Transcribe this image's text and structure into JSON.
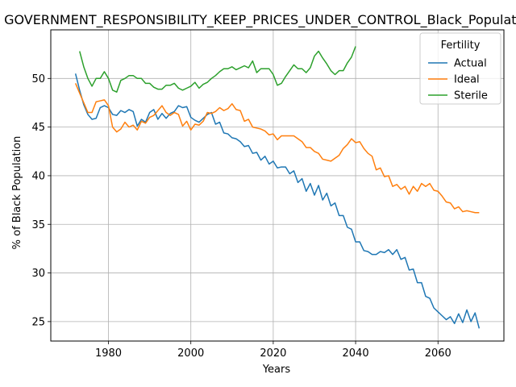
{
  "chart_data": {
    "type": "line",
    "title": "GOVERNMENT_RESPONSIBILITY_KEEP_PRICES_UNDER_CONTROL_Black_Population",
    "xlabel": "Years",
    "ylabel": "% of Black Population",
    "xlim": [
      1966,
      2076
    ],
    "ylim": [
      23,
      55
    ],
    "xticks": [
      1980,
      2000,
      2020,
      2040,
      2060
    ],
    "yticks": [
      25,
      30,
      35,
      40,
      45,
      50
    ],
    "grid": true,
    "legend": {
      "title": "Fertility",
      "placement": "top-right"
    },
    "series": [
      {
        "name": "Actual",
        "color": "#1f77b4",
        "x": [
          1972,
          1973,
          1974,
          1975,
          1976,
          1977,
          1978,
          1979,
          1980,
          1981,
          1982,
          1983,
          1984,
          1985,
          1986,
          1987,
          1988,
          1989,
          1990,
          1991,
          1992,
          1993,
          1994,
          1995,
          1996,
          1997,
          1998,
          1999,
          2000,
          2001,
          2002,
          2003,
          2004,
          2005,
          2006,
          2007,
          2008,
          2009,
          2010,
          2011,
          2012,
          2013,
          2014,
          2015,
          2016,
          2017,
          2018,
          2019,
          2020,
          2021,
          2022,
          2023,
          2024,
          2025,
          2026,
          2027,
          2028,
          2029,
          2030,
          2031,
          2032,
          2033,
          2034,
          2035,
          2036,
          2037,
          2038,
          2039,
          2040,
          2041,
          2042,
          2043,
          2044,
          2045,
          2046,
          2047,
          2048,
          2049,
          2050,
          2051,
          2052,
          2053,
          2054,
          2055,
          2056,
          2057,
          2058,
          2059,
          2060,
          2061,
          2062,
          2063,
          2064,
          2065,
          2066,
          2067,
          2068,
          2069,
          2070
        ],
        "y": [
          50.5,
          48.8,
          47.3,
          46.3,
          45.8,
          45.9,
          47.0,
          47.2,
          47.0,
          46.3,
          46.2,
          46.7,
          46.5,
          46.8,
          46.6,
          45.1,
          45.8,
          45.5,
          46.5,
          46.8,
          45.8,
          46.4,
          45.9,
          46.4,
          46.6,
          47.2,
          47.0,
          47.1,
          46.0,
          45.7,
          45.5,
          45.9,
          46.3,
          46.5,
          45.3,
          45.5,
          44.4,
          44.3,
          43.9,
          43.8,
          43.5,
          43.0,
          43.1,
          42.3,
          42.4,
          41.6,
          42.0,
          41.2,
          41.5,
          40.8,
          40.9,
          40.9,
          40.2,
          40.5,
          39.3,
          39.7,
          38.4,
          39.2,
          38.0,
          39.0,
          37.5,
          38.2,
          36.9,
          37.2,
          35.9,
          35.9,
          34.7,
          34.5,
          33.2,
          33.2,
          32.3,
          32.2,
          31.9,
          31.9,
          32.2,
          32.1,
          32.4,
          31.9,
          32.4,
          31.4,
          31.6,
          30.3,
          30.4,
          29.0,
          29.0,
          27.6,
          27.4,
          26.4,
          26.0,
          25.6,
          25.2,
          25.5,
          24.8,
          25.8,
          24.9,
          26.2,
          25.0,
          25.9,
          24.3
        ]
      },
      {
        "name": "Ideal",
        "color": "#ff7f0e",
        "x": [
          1972,
          1973,
          1974,
          1975,
          1976,
          1977,
          1978,
          1979,
          1980,
          1981,
          1982,
          1983,
          1984,
          1985,
          1986,
          1987,
          1988,
          1989,
          1990,
          1991,
          1992,
          1993,
          1994,
          1995,
          1996,
          1997,
          1998,
          1999,
          2000,
          2001,
          2002,
          2003,
          2004,
          2005,
          2006,
          2007,
          2008,
          2009,
          2010,
          2011,
          2012,
          2013,
          2014,
          2015,
          2016,
          2017,
          2018,
          2019,
          2020,
          2021,
          2022,
          2023,
          2024,
          2025,
          2026,
          2027,
          2028,
          2029,
          2030,
          2031,
          2032,
          2033,
          2034,
          2035,
          2036,
          2037,
          2038,
          2039,
          2040,
          2041,
          2042,
          2043,
          2044,
          2045,
          2046,
          2047,
          2048,
          2049,
          2050,
          2051,
          2052,
          2053,
          2054,
          2055,
          2056,
          2057,
          2058,
          2059,
          2060,
          2061,
          2062,
          2063,
          2064,
          2065,
          2066,
          2067,
          2068,
          2069,
          2070
        ],
        "y": [
          49.5,
          48.5,
          47.5,
          46.5,
          46.5,
          47.6,
          47.7,
          47.8,
          47.2,
          45.0,
          44.5,
          44.8,
          45.5,
          45.0,
          45.2,
          44.7,
          45.6,
          45.4,
          46.0,
          46.2,
          46.7,
          47.2,
          46.5,
          46.2,
          46.5,
          46.3,
          45.1,
          45.6,
          44.7,
          45.3,
          45.2,
          45.6,
          46.5,
          46.4,
          46.6,
          47.0,
          46.7,
          46.9,
          47.4,
          46.8,
          46.7,
          45.6,
          45.8,
          45.0,
          44.9,
          44.8,
          44.6,
          44.2,
          44.3,
          43.7,
          44.1,
          44.1,
          44.1,
          44.1,
          43.8,
          43.5,
          42.9,
          42.9,
          42.5,
          42.3,
          41.7,
          41.6,
          41.5,
          41.8,
          42.1,
          42.8,
          43.2,
          43.8,
          43.4,
          43.5,
          42.8,
          42.3,
          42.0,
          40.6,
          40.8,
          39.9,
          40.0,
          38.9,
          39.1,
          38.6,
          38.9,
          38.1,
          38.9,
          38.4,
          39.2,
          38.9,
          39.2,
          38.5,
          38.4,
          37.9,
          37.3,
          37.2,
          36.6,
          36.8,
          36.3,
          36.4,
          36.3,
          36.2,
          36.2
        ]
      },
      {
        "name": "Sterile",
        "color": "#2ca02c",
        "x": [
          1973,
          1974,
          1975,
          1976,
          1977,
          1978,
          1979,
          1980,
          1981,
          1982,
          1983,
          1984,
          1985,
          1986,
          1987,
          1988,
          1989,
          1990,
          1991,
          1992,
          1993,
          1994,
          1995,
          1996,
          1997,
          1998,
          1999,
          2000,
          2001,
          2002,
          2003,
          2004,
          2005,
          2006,
          2007,
          2008,
          2009,
          2010,
          2011,
          2012,
          2013,
          2014,
          2015,
          2016,
          2017,
          2018,
          2019,
          2020,
          2021,
          2022,
          2023,
          2024,
          2025,
          2026,
          2027,
          2028,
          2029,
          2030,
          2031,
          2032,
          2033,
          2034,
          2035,
          2036,
          2037,
          2038,
          2039,
          2040,
          2041
        ],
        "y": [
          52.8,
          51.2,
          50.0,
          49.2,
          50.0,
          50.0,
          50.7,
          50.0,
          48.8,
          48.6,
          49.8,
          50.0,
          50.3,
          50.3,
          50.0,
          50.0,
          49.5,
          49.5,
          49.1,
          48.9,
          48.9,
          49.3,
          49.3,
          49.5,
          49.0,
          48.8,
          49.0,
          49.2,
          49.6,
          49.0,
          49.4,
          49.6,
          50.0,
          50.3,
          50.7,
          51.0,
          51.0,
          51.2,
          50.9,
          51.1,
          51.3,
          51.1,
          51.8,
          50.6,
          51.0,
          51.0,
          51.0,
          50.4,
          49.3,
          49.5,
          50.2,
          50.8,
          51.4,
          51.0,
          51.0,
          50.6,
          51.1,
          52.3,
          52.8,
          52.1,
          51.5,
          50.8,
          50.4,
          50.8,
          50.8,
          51.6,
          52.2,
          53.3,
          null
        ]
      }
    ]
  }
}
